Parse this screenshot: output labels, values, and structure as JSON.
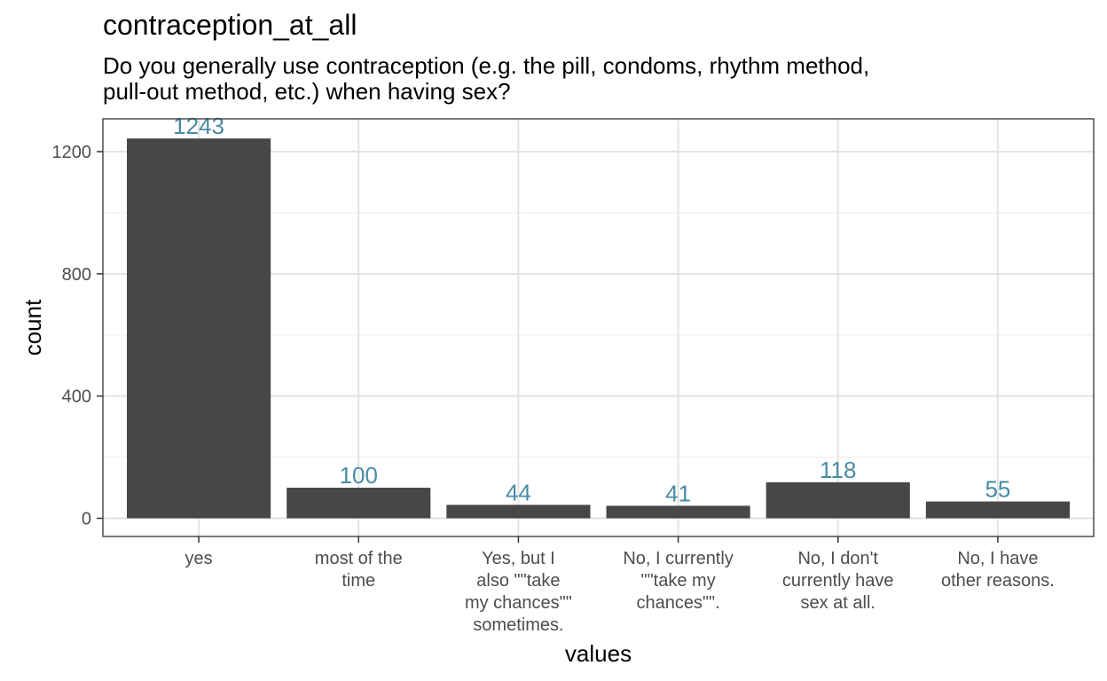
{
  "chart_data": {
    "type": "bar",
    "title": "contraception_at_all",
    "subtitle": "Do you generally use contraception (e.g. the pill, condoms, rhythm method, pull-out method, etc.) when having sex?",
    "xlabel": "values",
    "ylabel": "count",
    "categories": [
      [
        "yes"
      ],
      [
        "most of the",
        "time"
      ],
      [
        "Yes, but I",
        "also \"\"take",
        "my chances\"\"",
        "sometimes."
      ],
      [
        "No, I currently",
        "\"\"take my",
        "chances\"\"."
      ],
      [
        "No, I don't",
        "currently have",
        "sex at all."
      ],
      [
        "No, I have",
        "other reasons."
      ]
    ],
    "values": [
      1243,
      100,
      44,
      41,
      118,
      55
    ],
    "yticks": [
      0,
      400,
      800,
      1200
    ],
    "ylim": [
      -60,
      1305
    ],
    "grid": true,
    "bar_color": "#474747",
    "label_color": "#4A8BA6"
  }
}
